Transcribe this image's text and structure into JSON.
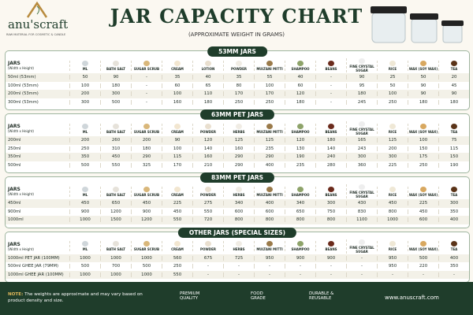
{
  "header": {
    "logo": "anu'scraft",
    "tagline": "RAW MATERIAL FOR COSMETIC & CANDLE",
    "title": "JAR CAPACITY CHART",
    "subtitle": "(APPROXIMATE WEIGHT IN GRAMS)"
  },
  "sections": [
    {
      "title": "53MM JARS",
      "jars_label": "JARS",
      "jars_sub": "(Width x Height)",
      "columns": [
        "ML",
        "BATH SALT",
        "SUGAR SCRUB",
        "CREAM",
        "LOTION",
        "POWDER",
        "MULTANI MITTI",
        "SHAMPOO",
        "BEANS",
        "FINE CRYSTAL SUGAR",
        "RICE",
        "WAX (SOY WAX)",
        "TEA"
      ],
      "rows": [
        {
          "label": "50ml (53mm)",
          "values": [
            50,
            90,
            "-",
            35,
            40,
            35,
            55,
            40,
            "-",
            90,
            25,
            50,
            20
          ]
        },
        {
          "label": "100ml (53mm)",
          "values": [
            100,
            180,
            "-",
            60,
            65,
            80,
            100,
            60,
            "-",
            95,
            50,
            90,
            45
          ]
        },
        {
          "label": "200ml (53mm)",
          "values": [
            200,
            300,
            "-",
            100,
            110,
            170,
            170,
            120,
            "-",
            180,
            100,
            90,
            90
          ]
        },
        {
          "label": "300ml (53mm)",
          "values": [
            300,
            500,
            "-",
            160,
            180,
            250,
            250,
            180,
            "-",
            245,
            250,
            180,
            180
          ]
        }
      ]
    },
    {
      "title": "63MM PET JARS",
      "jars_label": "JARS",
      "jars_sub": "(Width x Height)",
      "columns": [
        "ML",
        "BATH SALT",
        "SUGAR SCRUB",
        "CREAM",
        "POWDER",
        "HERBS",
        "MULTANI MITTI",
        "SHAMPOO",
        "BEANS",
        "FINE CRYSTAL SUGAR",
        "RICE",
        "WAX (SOY WAX)",
        "TEA"
      ],
      "rows": [
        {
          "label": "200ml",
          "values": [
            200,
            260,
            200,
            90,
            120,
            125,
            125,
            120,
            180,
            165,
            125,
            100,
            75
          ]
        },
        {
          "label": "250ml",
          "values": [
            250,
            310,
            180,
            100,
            140,
            160,
            235,
            130,
            140,
            243,
            200,
            150,
            115
          ]
        },
        {
          "label": "350ml",
          "values": [
            350,
            450,
            290,
            115,
            160,
            290,
            290,
            190,
            240,
            300,
            300,
            175,
            150
          ]
        },
        {
          "label": "500ml",
          "values": [
            500,
            550,
            325,
            170,
            210,
            290,
            400,
            235,
            280,
            360,
            225,
            250,
            190
          ]
        }
      ]
    },
    {
      "title": "83MM PET JARS",
      "jars_label": "JARS",
      "jars_sub": "(Width x Height)",
      "columns": [
        "ML",
        "BATH SALT",
        "SUGAR SCRUB",
        "CREAM",
        "POWDER",
        "HERBS",
        "MULTANI MITTI",
        "SHAMPOO",
        "BEANS",
        "FINE CRYSTAL SUGAR",
        "RICE",
        "WAX (SOY WAX)",
        "TEA"
      ],
      "rows": [
        {
          "label": "450ml",
          "values": [
            450,
            650,
            450,
            225,
            275,
            340,
            400,
            340,
            300,
            430,
            450,
            225,
            300
          ]
        },
        {
          "label": "900ml",
          "values": [
            900,
            1200,
            900,
            450,
            550,
            600,
            600,
            650,
            750,
            830,
            800,
            450,
            350
          ]
        },
        {
          "label": "1000ml",
          "values": [
            1000,
            1500,
            1200,
            550,
            720,
            800,
            800,
            800,
            800,
            1100,
            1000,
            600,
            400
          ]
        }
      ]
    },
    {
      "title": "OTHER JARS (SPECIAL SIZES)",
      "jars_label": "JARS",
      "jars_sub": "(Width x Height)",
      "columns": [
        "ML",
        "BATH SALT",
        "SUGAR SCRUB",
        "CREAM",
        "POWDER",
        "HERBS",
        "MULTANI MITTI",
        "SHAMPOO",
        "BEANS",
        "FINE CRYSTAL SUGAR",
        "RICE",
        "WAX (SOY WAX)",
        "TEA"
      ],
      "rows": [
        {
          "label": "1000ml PET JAR (100MM)",
          "values": [
            1000,
            1000,
            1000,
            560,
            675,
            725,
            950,
            900,
            900,
            "-",
            950,
            500,
            400
          ]
        },
        {
          "label": "500ml GHEE JAR (79MM)",
          "values": [
            500,
            700,
            500,
            250,
            "-",
            "-",
            "-",
            "-",
            "-",
            "-",
            950,
            220,
            350
          ]
        },
        {
          "label": "1000ml GHEE JAR (100MM)",
          "values": [
            1000,
            1000,
            1000,
            550,
            "-",
            "-",
            "-",
            "-",
            "-",
            "-",
            "-",
            "-",
            "-"
          ]
        }
      ]
    }
  ],
  "footer": {
    "note_label": "NOTE:",
    "note": "The weights are approximate and may vary based on product density and size.",
    "badges": [
      "PREMIUM QUALITY",
      "FOOD GRADE",
      "DURABLE & REUSABLE"
    ],
    "website": "www.anuscraft.com"
  }
}
